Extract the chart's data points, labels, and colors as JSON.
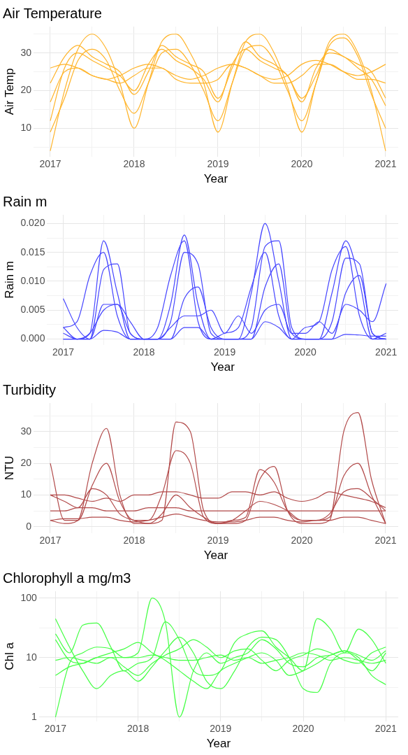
{
  "chart_data": [
    {
      "type": "line",
      "title": "Air Temperature",
      "xlabel": "Year",
      "ylabel": "Air Temp",
      "marker": "none",
      "line_style": "solid",
      "grid": true,
      "x": [
        2017,
        2017.17,
        2017.33,
        2017.5,
        2017.67,
        2017.83,
        2018,
        2018.17,
        2018.33,
        2018.5,
        2018.67,
        2018.83,
        2019,
        2019.17,
        2019.33,
        2019.5,
        2019.67,
        2019.83,
        2020,
        2020.17,
        2020.33,
        2020.5,
        2020.67,
        2020.83,
        2021
      ],
      "xlim": [
        2016.8,
        2021.15
      ],
      "xticks": [
        2017,
        {
          "value": 2017.5,
          "label": null
        },
        2018,
        {
          "value": 2018.5,
          "label": null
        },
        2019,
        {
          "value": 2019.5,
          "label": null
        },
        2020,
        {
          "value": 2020.5,
          "label": null
        },
        2021
      ],
      "ylim": [
        2.5,
        37
      ],
      "yticks": [
        {
          "value": 5,
          "label": null
        },
        10,
        {
          "value": 15,
          "label": null
        },
        20,
        {
          "value": 25,
          "label": null
        },
        30,
        {
          "value": 35,
          "label": null
        }
      ],
      "series": [
        {
          "color": "#ffb42a",
          "values": [
            22,
            29,
            32,
            29,
            27,
            25,
            19,
            25,
            32,
            29,
            27,
            25,
            18,
            26,
            33,
            29,
            27,
            24,
            18,
            24,
            31,
            29,
            27,
            25,
            18
          ]
        },
        {
          "color": "#ffb42a",
          "values": [
            4,
            20,
            31,
            35,
            31,
            22,
            10,
            22,
            33,
            35,
            30,
            22,
            9,
            22,
            33,
            35,
            30,
            21,
            9,
            22,
            33,
            35,
            30,
            20,
            4
          ]
        },
        {
          "color": "#ffb42a",
          "values": [
            12,
            26,
            30,
            28,
            26,
            24,
            20,
            27,
            31,
            28,
            26,
            23,
            17,
            27,
            31,
            28,
            26,
            24,
            17,
            26,
            30,
            29,
            26,
            23,
            16
          ]
        },
        {
          "color": "#ffb42a",
          "values": [
            26,
            27,
            26,
            24,
            23,
            24,
            26,
            27,
            26,
            24,
            23,
            24,
            26,
            27,
            26,
            24,
            23,
            24,
            27,
            28,
            27,
            25,
            24,
            25,
            27
          ]
        },
        {
          "color": "#ffb42a",
          "values": [
            9,
            18,
            28,
            31,
            28,
            20,
            14,
            22,
            30,
            31,
            27,
            20,
            12,
            22,
            31,
            32,
            28,
            20,
            12,
            22,
            32,
            34,
            29,
            19,
            10
          ]
        },
        {
          "color": "#ffb42a",
          "values": [
            17,
            25,
            26,
            24,
            23,
            22,
            24,
            26,
            26,
            23,
            22,
            22,
            23,
            27,
            26,
            24,
            22,
            22,
            24,
            27,
            27,
            25,
            23,
            23,
            22
          ]
        }
      ]
    },
    {
      "type": "line",
      "title": "Rain m",
      "xlabel": "Year",
      "ylabel": "Rain m",
      "marker": "none",
      "line_style": "solid",
      "grid": true,
      "x": [
        2017,
        2017.17,
        2017.33,
        2017.5,
        2017.67,
        2017.83,
        2018,
        2018.17,
        2018.33,
        2018.5,
        2018.67,
        2018.83,
        2019,
        2019.17,
        2019.33,
        2019.5,
        2019.67,
        2019.83,
        2020,
        2020.17,
        2020.33,
        2020.5,
        2020.67,
        2020.83,
        2021
      ],
      "xlim": [
        2016.8,
        2021.15
      ],
      "xticks": [
        2017,
        {
          "value": 2017.5,
          "label": null
        },
        2018,
        {
          "value": 2018.5,
          "label": null
        },
        2019,
        {
          "value": 2019.5,
          "label": null
        },
        2020,
        {
          "value": 2020.5,
          "label": null
        },
        2021
      ],
      "ylim": [
        -0.001,
        0.0215
      ],
      "yticks": [
        {
          "value": 0,
          "label": "0.000"
        },
        {
          "value": 0.0025,
          "label": null
        },
        {
          "value": 0.005,
          "label": "0.005"
        },
        {
          "value": 0.0075,
          "label": null
        },
        {
          "value": 0.01,
          "label": "0.010"
        },
        {
          "value": 0.0125,
          "label": null
        },
        {
          "value": 0.015,
          "label": "0.015"
        },
        {
          "value": 0.0175,
          "label": null
        },
        {
          "value": 0.02,
          "label": "0.020"
        }
      ],
      "series": [
        {
          "color": "#4545ff",
          "values": [
            0.007,
            0.002,
            0,
            0.012,
            0.013,
            0.001,
            0,
            0,
            0.003,
            0.015,
            0.013,
            0.001,
            0,
            0,
            0.002,
            0.016,
            0.017,
            0.002,
            0,
            0,
            0.003,
            0.014,
            0.013,
            0.001,
            0
          ]
        },
        {
          "color": "#4545ff",
          "values": [
            0.002,
            0,
            0.001,
            0.017,
            0.008,
            0,
            0,
            0,
            0.006,
            0.018,
            0.006,
            0,
            0,
            0,
            0.008,
            0.02,
            0.01,
            0,
            0,
            0,
            0.008,
            0.017,
            0.01,
            0,
            0
          ]
        },
        {
          "color": "#4545ff",
          "values": [
            0,
            0,
            0,
            0.006,
            0.006,
            0.001,
            0,
            0,
            0,
            0.007,
            0.009,
            0.002,
            0,
            0,
            0,
            0.009,
            0.013,
            0.001,
            0,
            0,
            0,
            0.008,
            0.011,
            0.001,
            0
          ]
        },
        {
          "color": "#4545ff",
          "values": [
            0.001,
            0,
            0.001,
            0.005,
            0.006,
            0.003,
            0,
            0,
            0.002,
            0.004,
            0.004,
            0.005,
            0.001,
            0.004,
            0.001,
            0.005,
            0.006,
            0.001,
            0.001,
            0.003,
            0.001,
            0.006,
            0.005,
            0.003,
            0.0096
          ]
        },
        {
          "color": "#4545ff",
          "values": [
            0.002,
            0.003,
            0.011,
            0.015,
            0.004,
            0,
            0,
            0.002,
            0.011,
            0.017,
            0.003,
            0,
            0.001,
            0.002,
            0.009,
            0.015,
            0.004,
            0,
            0.002,
            0.003,
            0.012,
            0.016,
            0.004,
            0,
            0.001
          ]
        },
        {
          "color": "#4545ff",
          "values": [
            0,
            0,
            0,
            0.0015,
            0.0012,
            0,
            0,
            0,
            0,
            0.002,
            0.002,
            0,
            0,
            0,
            0,
            0.003,
            0.002,
            0,
            0,
            0,
            0,
            0.0008,
            0.0007,
            0.0005,
            0.0005
          ]
        }
      ]
    },
    {
      "type": "line",
      "title": "Turbidity",
      "xlabel": "Year",
      "ylabel": "NTU",
      "marker": "none",
      "line_style": "solid",
      "grid": true,
      "x": [
        2017,
        2017.17,
        2017.33,
        2017.5,
        2017.67,
        2017.83,
        2018,
        2018.17,
        2018.33,
        2018.5,
        2018.67,
        2018.83,
        2019,
        2019.17,
        2019.33,
        2019.5,
        2019.67,
        2019.83,
        2020,
        2020.17,
        2020.33,
        2020.5,
        2020.67,
        2020.83,
        2021
      ],
      "xlim": [
        2016.8,
        2021.15
      ],
      "xticks": [
        2017,
        {
          "value": 2017.5,
          "label": null
        },
        2018,
        {
          "value": 2018.5,
          "label": null
        },
        2019,
        {
          "value": 2019.5,
          "label": null
        },
        2020,
        {
          "value": 2020.5,
          "label": null
        },
        2021
      ],
      "ylim": [
        -2,
        39
      ],
      "yticks": [
        0,
        {
          "value": 5,
          "label": null
        },
        10,
        {
          "value": 15,
          "label": null
        },
        20,
        {
          "value": 25,
          "label": null
        },
        30,
        {
          "value": 35,
          "label": null
        }
      ],
      "series": [
        {
          "color": "#b24a4a",
          "values": [
            2,
            2.5,
            2.5,
            3,
            3,
            2,
            1.5,
            2,
            3,
            4,
            3,
            2,
            1.5,
            1.5,
            2,
            3,
            3,
            2,
            1.5,
            2,
            2,
            3,
            3,
            2,
            1
          ]
        },
        {
          "color": "#b24a4a",
          "values": [
            2,
            1,
            2,
            20,
            31,
            10,
            1,
            1,
            2,
            33,
            30,
            5,
            1,
            1,
            2,
            15,
            19,
            5,
            1,
            1,
            2,
            30,
            36,
            15,
            1
          ]
        },
        {
          "color": "#b24a4a",
          "values": [
            20,
            2,
            2,
            13,
            20,
            8,
            2,
            2,
            10,
            24,
            20,
            3,
            1,
            2,
            3,
            18,
            14,
            5,
            2,
            2,
            3,
            16,
            20,
            10,
            1
          ]
        },
        {
          "color": "#b24a4a",
          "values": [
            10,
            10,
            9,
            8,
            9,
            8,
            10,
            10,
            11,
            11,
            10,
            9,
            9,
            11,
            11,
            10,
            11,
            9,
            8,
            9,
            11,
            10,
            9,
            8,
            6
          ]
        },
        {
          "color": "#b24a4a",
          "values": [
            5,
            5,
            6,
            6,
            5,
            5,
            5,
            6,
            6,
            6,
            5,
            5,
            5,
            5,
            5,
            5,
            5,
            5,
            5,
            5,
            5,
            5,
            5,
            5,
            5
          ]
        },
        {
          "color": "#b24a4a",
          "values": [
            10,
            8,
            6,
            12,
            10,
            4,
            2,
            1,
            4,
            10,
            6,
            3,
            1,
            2,
            5,
            8,
            7,
            5,
            2,
            2,
            4,
            11,
            12,
            9,
            5
          ]
        }
      ]
    },
    {
      "type": "line",
      "title": "Chlorophyll a mg/m3",
      "xlabel": "Year",
      "ylabel": "Chl a",
      "marker": "none",
      "line_style": "solid",
      "grid": true,
      "log": "y",
      "x": [
        2017,
        2017.17,
        2017.33,
        2017.5,
        2017.67,
        2017.83,
        2018,
        2018.17,
        2018.33,
        2018.5,
        2018.67,
        2018.83,
        2019,
        2019.17,
        2019.33,
        2019.5,
        2019.67,
        2019.83,
        2020,
        2020.17,
        2020.33,
        2020.5,
        2020.67,
        2020.83,
        2021
      ],
      "xlim": [
        2016.8,
        2021.15
      ],
      "xticks": [
        2017,
        {
          "value": 2017.5,
          "label": null
        },
        2018,
        {
          "value": 2018.5,
          "label": null
        },
        2019,
        {
          "value": 2019.5,
          "label": null
        },
        2020,
        {
          "value": 2020.5,
          "label": null
        },
        2021
      ],
      "ylim": [
        0.85,
        130
      ],
      "yticks": [
        1,
        {
          "value": 3.162,
          "label": null
        },
        10,
        {
          "value": 31.62,
          "label": null
        },
        100
      ],
      "series": [
        {
          "color": "#44ff44",
          "values": [
            9,
            10,
            9,
            8,
            10,
            10,
            10,
            11,
            10,
            9,
            9,
            10,
            11,
            9,
            10,
            8,
            9,
            10,
            12,
            11,
            9,
            10,
            9,
            8,
            9
          ]
        },
        {
          "color": "#44ff44",
          "values": [
            1,
            8,
            12,
            15,
            14,
            10,
            12,
            100,
            40,
            1,
            6,
            12,
            8,
            10,
            12,
            20,
            14,
            8,
            7,
            10,
            11,
            13,
            11,
            9,
            13
          ]
        },
        {
          "color": "#44ff44",
          "values": [
            45,
            15,
            6,
            3,
            5,
            6,
            4,
            7,
            13,
            22,
            12,
            4,
            3,
            6,
            15,
            22,
            20,
            10,
            3,
            2.6,
            8,
            12,
            10,
            5,
            3.5
          ]
        },
        {
          "color": "#44ff44",
          "values": [
            25,
            12,
            35,
            38,
            15,
            6,
            8,
            10,
            40,
            20,
            6,
            5,
            6,
            18,
            25,
            28,
            15,
            10,
            6,
            45,
            30,
            12,
            30,
            20,
            8
          ]
        },
        {
          "color": "#44ff44",
          "values": [
            5,
            7,
            8,
            10,
            12,
            14,
            18,
            12,
            9,
            6,
            4,
            3,
            6,
            8,
            10,
            12,
            9,
            5,
            6,
            8,
            11,
            13,
            9,
            6,
            12
          ]
        },
        {
          "color": "#44ff44",
          "values": [
            20,
            9,
            8,
            10,
            10,
            7,
            5,
            8,
            11,
            14,
            20,
            15,
            10,
            13,
            14,
            9,
            6,
            9,
            11,
            14,
            12,
            9,
            8,
            12,
            15
          ]
        }
      ]
    }
  ]
}
